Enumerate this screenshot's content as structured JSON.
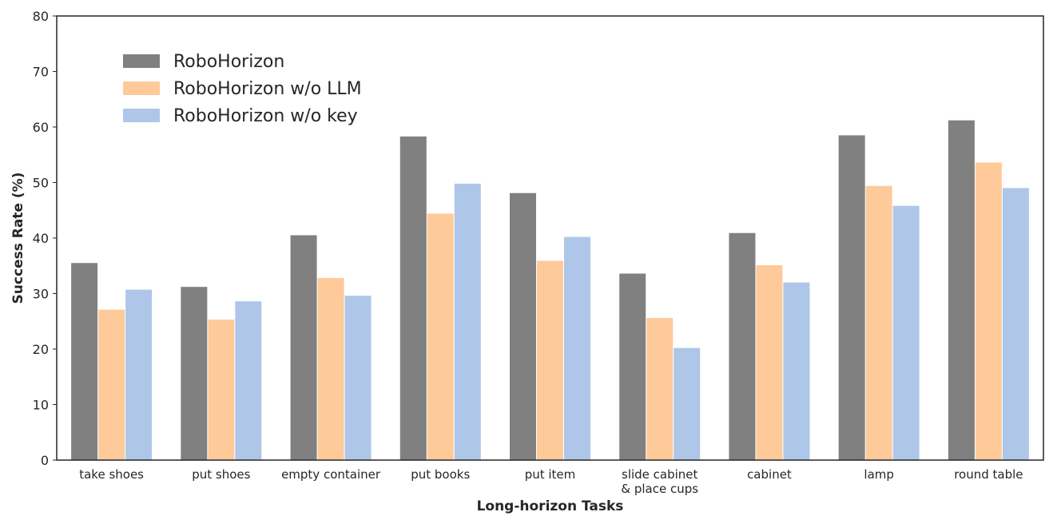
{
  "chart_data": {
    "type": "bar",
    "xlabel": "Long-horizon Tasks",
    "ylabel": "Success Rate (%)",
    "ylim": [
      0,
      80
    ],
    "yticks": [
      0,
      10,
      20,
      30,
      40,
      50,
      60,
      70,
      80
    ],
    "grid": false,
    "legend_position": "top-left",
    "categories": [
      [
        "take shoes"
      ],
      [
        "put shoes"
      ],
      [
        "empty container"
      ],
      [
        "put books"
      ],
      [
        "put item"
      ],
      [
        "slide cabinet",
        "& place cups"
      ],
      [
        "cabinet"
      ],
      [
        "lamp"
      ],
      [
        "round table"
      ]
    ],
    "series": [
      {
        "name": "RoboHorizon",
        "color": "#808080",
        "values": [
          35.5,
          31.2,
          40.5,
          58.3,
          48.1,
          33.6,
          40.9,
          58.5,
          61.2
        ]
      },
      {
        "name": "RoboHorizon w/o LLM",
        "color": "#FFCA99",
        "values": [
          27.1,
          25.3,
          32.8,
          44.4,
          35.9,
          25.6,
          35.1,
          49.4,
          53.6
        ]
      },
      {
        "name": "RoboHorizon w/o key",
        "color": "#AEC7E8",
        "values": [
          30.7,
          28.6,
          29.6,
          49.8,
          40.2,
          20.2,
          32.0,
          45.8,
          49.0
        ]
      }
    ]
  }
}
